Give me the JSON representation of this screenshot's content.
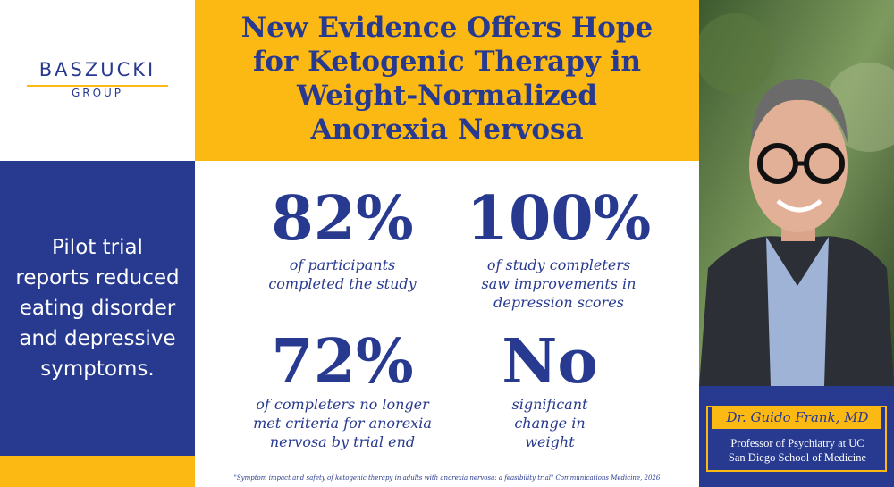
{
  "logo": {
    "name": "BASZUCKI",
    "sub": "GROUP"
  },
  "title": [
    "New Evidence Offers Hope",
    "for Ketogenic Therapy in",
    "Weight-Normalized",
    "Anorexia Nervosa"
  ],
  "summary": [
    "Pilot trial",
    "reports reduced",
    "eating disorder",
    "and depressive",
    "symptoms."
  ],
  "stats": [
    {
      "figure": "82%",
      "text": [
        "of participants",
        "completed the study"
      ]
    },
    {
      "figure": "100%",
      "text": [
        "of study completers",
        "saw improvements in",
        "depression scores"
      ]
    },
    {
      "figure": "72%",
      "text": [
        "of completers no longer",
        "met criteria for anorexia",
        "nervosa by trial end"
      ]
    },
    {
      "figure": "No",
      "text": [
        "significant",
        "change in",
        "weight"
      ]
    }
  ],
  "person": {
    "name": "Dr. Guido Frank, MD",
    "role": [
      "Professor of Psychiatry at UC",
      "San Diego School of Medicine"
    ]
  },
  "citation": "\"Symptom impact and safety of ketogenic therapy in adults with anorexia nervosa: a feasibility trial\" Communications Medicine, 2026"
}
